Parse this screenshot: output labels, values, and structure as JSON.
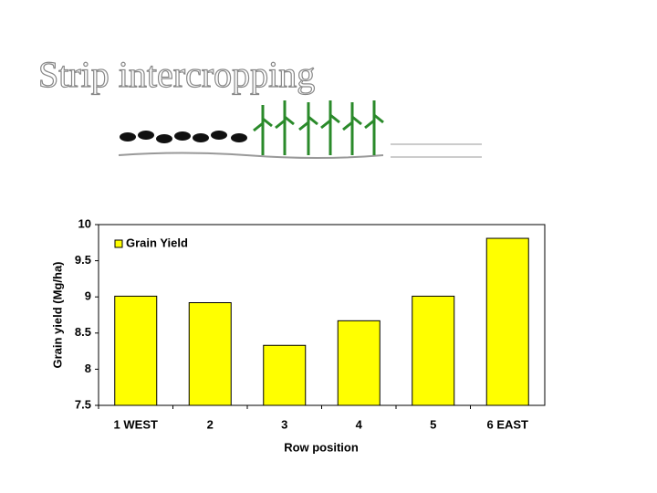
{
  "title": "Strip intercropping",
  "chart_data": {
    "type": "bar",
    "x_label": "Row position",
    "y_label": "Grain yield (Mg/ha)",
    "categories": [
      "1 WEST",
      "2",
      "3",
      "4",
      "5",
      "6 EAST"
    ],
    "series": [
      {
        "name": "Grain Yield",
        "color": "#ffff00",
        "values": [
          9.01,
          8.92,
          8.33,
          8.67,
          9.01,
          9.81
        ]
      }
    ],
    "ylim": [
      7.5,
      10
    ],
    "yticks": [
      7.5,
      8,
      8.5,
      9,
      9.5,
      10
    ],
    "grid": false,
    "legend": "upper left"
  }
}
